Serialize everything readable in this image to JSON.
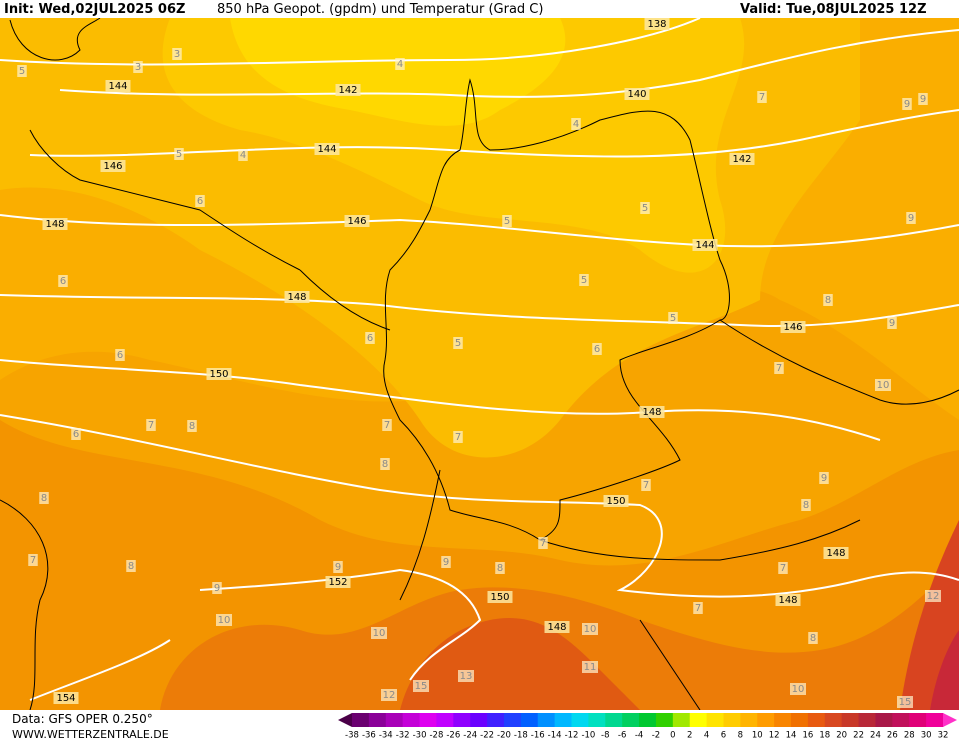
{
  "header": {
    "init": "Init: Wed,02JUL2025 06Z",
    "title": "850 hPa Geopot. (gpdm) und Temperatur (Grad C)",
    "valid": "Valid: Tue,08JUL2025 12Z"
  },
  "footer": {
    "data": "Data: GFS OPER 0.250°",
    "site": "WWW.WETTERZENTRALE.DE"
  },
  "scale": {
    "ticks": [
      -38,
      -36,
      -34,
      -32,
      -30,
      -28,
      -26,
      -24,
      -22,
      -20,
      -18,
      -16,
      -14,
      -12,
      -10,
      -8,
      -6,
      -4,
      -2,
      0,
      2,
      4,
      6,
      8,
      10,
      12,
      14,
      16,
      18,
      20,
      22,
      24,
      26,
      28,
      30,
      32
    ],
    "colors": [
      "#4a0048",
      "#6a0070",
      "#8a0098",
      "#a800b8",
      "#c400d8",
      "#de00f0",
      "#c000ff",
      "#9000ff",
      "#6a00ff",
      "#4020ff",
      "#2040ff",
      "#0060ff",
      "#0090ff",
      "#00b8ff",
      "#00d8f0",
      "#00e0c0",
      "#00d890",
      "#00d060",
      "#00c830",
      "#30d000",
      "#a0e800",
      "#ffff00",
      "#ffe400",
      "#ffcc00",
      "#ffb400",
      "#ff9c00",
      "#f88400",
      "#f07000",
      "#e85a10",
      "#d84820",
      "#c83828",
      "#b82838",
      "#a81848",
      "#c0105a",
      "#e00078",
      "#f0009a",
      "#ff30c8"
    ]
  },
  "geopotential_labels": [
    138,
    140,
    142,
    142,
    144,
    144,
    144,
    146,
    146,
    146,
    148,
    148,
    148,
    148,
    148,
    148,
    150,
    150,
    150,
    152,
    154
  ],
  "temperature_labels": [
    3,
    3,
    4,
    4,
    4,
    5,
    5,
    5,
    5,
    5,
    5,
    5,
    6,
    6,
    6,
    6,
    6,
    6,
    7,
    7,
    7,
    7,
    7,
    7,
    7,
    7,
    7,
    7,
    8,
    8,
    8,
    8,
    8,
    8,
    8,
    8,
    9,
    9,
    9,
    9,
    9,
    9,
    9,
    9,
    10,
    10,
    10,
    10,
    10,
    11,
    12,
    13,
    15,
    15,
    12
  ]
}
